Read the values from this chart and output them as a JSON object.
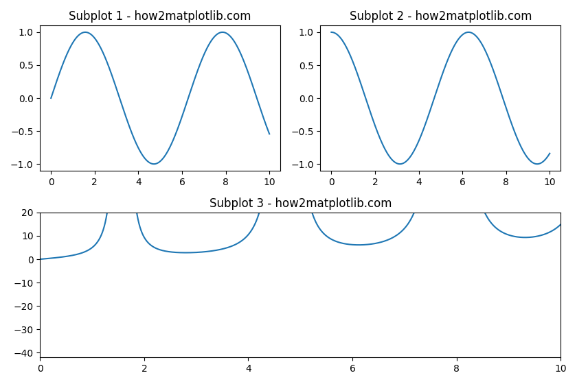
{
  "title1": "Subplot 1 - how2matplotlib.com",
  "title2": "Subplot 2 - how2matplotlib.com",
  "title3": "Subplot 3 - how2matplotlib.com",
  "line_color": "#1f77b4",
  "npoints": 10000,
  "figsize": [
    8.4,
    5.6
  ],
  "dpi": 100
}
